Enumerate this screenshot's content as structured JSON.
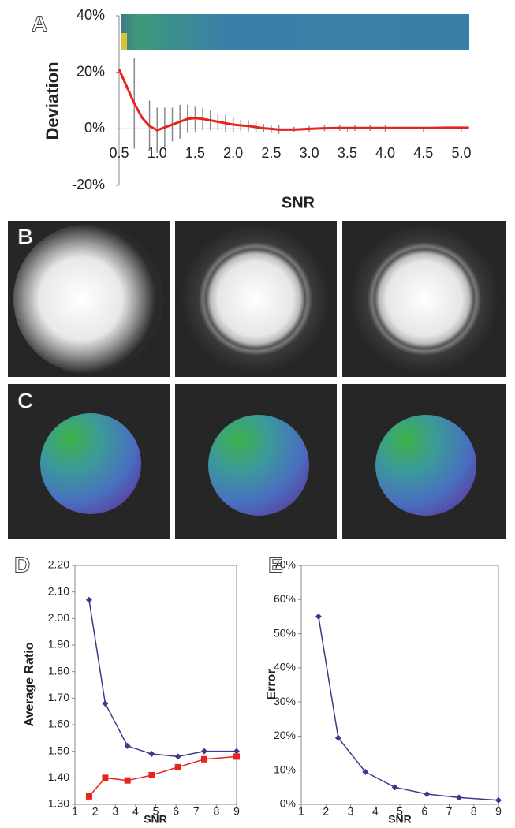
{
  "chart_data": [
    {
      "type": "line",
      "label": "A",
      "xlabel": "SNR",
      "ylabel": "Deviation",
      "color": "#e8231e",
      "error_color": "#888888",
      "xlim": [
        0.5,
        5.0
      ],
      "xticks": [
        0.5,
        {
          "value": 1,
          "label": "1.0"
        },
        1.5,
        {
          "value": 2,
          "label": "2.0"
        },
        2.5,
        {
          "value": 3,
          "label": "3.0"
        },
        3.5,
        {
          "value": 4,
          "label": "4.0"
        },
        4.5,
        {
          "value": 5,
          "label": "5.0"
        }
      ],
      "ylim": [
        -20,
        40
      ],
      "yticks": [
        {
          "value": -20,
          "label": "-20%"
        },
        {
          "value": 0,
          "label": "0%"
        },
        {
          "value": 20,
          "label": "20%"
        },
        {
          "value": 40,
          "label": "40%"
        }
      ],
      "x": [
        0.5,
        0.6,
        0.7,
        0.8,
        0.9,
        1.0,
        1.1,
        1.2,
        1.3,
        1.4,
        1.5,
        1.6,
        1.7,
        1.8,
        1.9,
        2.0,
        2.1,
        2.2,
        2.3,
        2.4,
        2.5,
        2.6,
        2.8,
        3.0,
        3.2,
        3.4,
        3.6,
        3.8,
        4.0,
        4.2,
        4.4,
        4.6,
        4.8,
        5.0,
        5.1
      ],
      "values": [
        21,
        15,
        9,
        4,
        1,
        -0.5,
        0.5,
        1.5,
        2.5,
        3.5,
        3.8,
        3.5,
        3,
        2.5,
        2,
        1.5,
        1.2,
        1,
        0.6,
        0.2,
        0,
        -0.3,
        -0.3,
        0,
        0.2,
        0.3,
        0.3,
        0.3,
        0.3,
        0.3,
        0.3,
        0.3,
        0.4,
        0.4,
        0.4
      ],
      "errors": [
        null,
        null,
        16,
        null,
        9,
        8,
        7,
        6,
        6,
        5,
        4,
        4,
        3.5,
        3,
        3,
        2.5,
        2,
        2,
        2,
        1.5,
        1.5,
        1.5,
        1,
        1,
        1,
        1,
        1,
        1,
        1,
        0.5,
        0.5,
        0.5,
        0.5,
        0.5,
        null
      ]
    },
    {
      "type": "line",
      "label": "D",
      "xlabel": "SNR",
      "ylabel": "Average Ratio",
      "xlim": [
        1,
        9
      ],
      "xticks": [
        1,
        2,
        3,
        4,
        5,
        6,
        7,
        8,
        9
      ],
      "ylim": [
        1.3,
        2.2
      ],
      "yticks": [
        {
          "value": 1.3,
          "label": "1.30"
        },
        {
          "value": 1.4,
          "label": "1.40"
        },
        {
          "value": 1.5,
          "label": "1.50"
        },
        {
          "value": 1.6,
          "label": "1.60"
        },
        {
          "value": 1.7,
          "label": "1.70"
        },
        {
          "value": 1.8,
          "label": "1.80"
        },
        {
          "value": 1.9,
          "label": "1.90"
        },
        {
          "value": 2.0,
          "label": "2.00"
        },
        {
          "value": 2.1,
          "label": "2.10"
        },
        {
          "value": 2.2,
          "label": "2.20"
        }
      ],
      "x": [
        1.7,
        2.5,
        3.6,
        4.8,
        6.1,
        7.4,
        9
      ],
      "series": [
        {
          "color": "#3a3a8c",
          "marker": "diamond",
          "values": [
            2.07,
            1.68,
            1.52,
            1.49,
            1.48,
            1.5,
            1.5
          ]
        },
        {
          "color": "#e8231e",
          "marker": "square",
          "values": [
            1.33,
            1.4,
            1.39,
            1.41,
            1.44,
            1.47,
            1.48
          ]
        }
      ]
    },
    {
      "type": "line",
      "label": "E",
      "xlabel": "SNR",
      "ylabel": "Error",
      "xlim": [
        1,
        9
      ],
      "xticks": [
        1,
        2,
        3,
        4,
        5,
        6,
        7,
        8,
        9
      ],
      "ylim": [
        0,
        70
      ],
      "yticks": [
        {
          "value": 0,
          "label": "0%"
        },
        {
          "value": 10,
          "label": "10%"
        },
        {
          "value": 20,
          "label": "20%"
        },
        {
          "value": 30,
          "label": "30%"
        },
        {
          "value": 40,
          "label": "40%"
        },
        {
          "value": 50,
          "label": "50%"
        },
        {
          "value": 60,
          "label": "60%"
        },
        {
          "value": 70,
          "label": "70%"
        }
      ],
      "x": [
        1.7,
        2.5,
        3.6,
        4.8,
        6.1,
        7.4,
        9
      ],
      "series": [
        {
          "color": "#3a3a8c",
          "marker": "diamond",
          "values": [
            55,
            19.5,
            9.5,
            5,
            3,
            2,
            1.2
          ]
        }
      ]
    }
  ],
  "image_panels": [
    {
      "label": "B"
    },
    {
      "label": "C"
    }
  ]
}
